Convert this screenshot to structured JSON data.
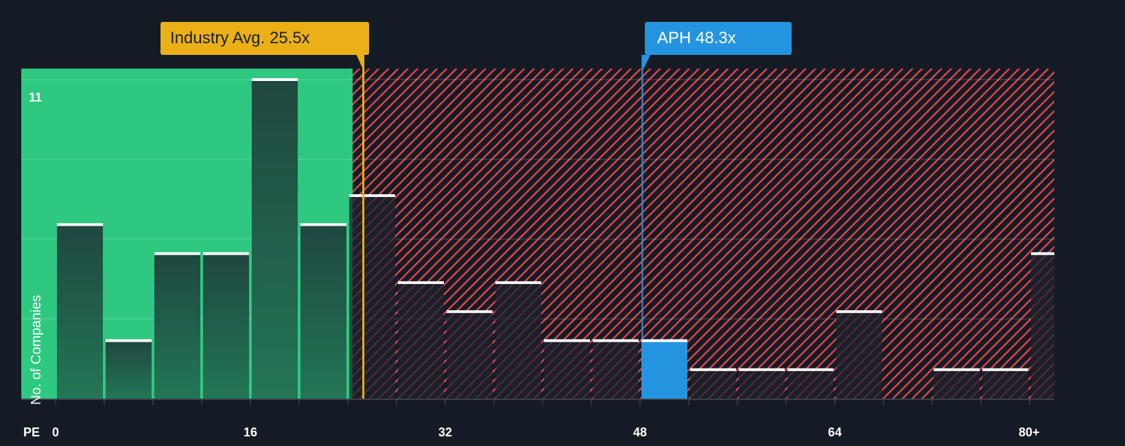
{
  "chart_data": {
    "type": "bar",
    "title": "",
    "xlabel": "PE",
    "ylabel": "No. of Companies",
    "x_ticks": [
      "0",
      "16",
      "32",
      "48",
      "64",
      "80+"
    ],
    "y_ticks_shown": [
      "11"
    ],
    "ylim": [
      0,
      11
    ],
    "bin_width": 4,
    "categories": [
      "0-4",
      "4-8",
      "8-12",
      "12-16",
      "16-20",
      "20-24",
      "24-28",
      "28-32",
      "32-36",
      "36-40",
      "40-44",
      "44-48",
      "48-52",
      "52-56",
      "56-60",
      "60-64",
      "64-68",
      "68-72",
      "72-76",
      "76-80",
      "80+"
    ],
    "values": [
      6,
      2,
      5,
      5,
      11,
      6,
      7,
      4,
      3,
      4,
      2,
      2,
      2,
      1,
      1,
      1,
      3,
      0,
      1,
      1,
      5
    ],
    "highlight_bin": "48-52",
    "annotations": [
      {
        "label": "Industry Avg. 25.5x",
        "x": 25.5,
        "color": "#ebb017"
      },
      {
        "label": "APH 48.3x",
        "x": 48.3,
        "color": "#2594e0"
      }
    ],
    "regions": [
      {
        "name": "below-average",
        "from": 0,
        "to": 24.3,
        "color": "#2ec880"
      },
      {
        "name": "above-average",
        "from": 24.3,
        "to": 84,
        "pattern": "red-hatch",
        "color": "#e0474c"
      }
    ],
    "grid": true
  },
  "annotations": {
    "industry_label": "Industry Avg. 25.5x",
    "aph_label": "APH 48.3x"
  },
  "axis": {
    "x_title": "PE",
    "y_title": "No. of Companies",
    "y_max_label": "11"
  },
  "colors": {
    "background": "#151b24",
    "green_zone": "#2ec880",
    "green_bar": "#215a47",
    "hatch": "#e0474c",
    "industry": "#ebb017",
    "aph": "#2594e0",
    "bar_cap": "#ffffff"
  }
}
